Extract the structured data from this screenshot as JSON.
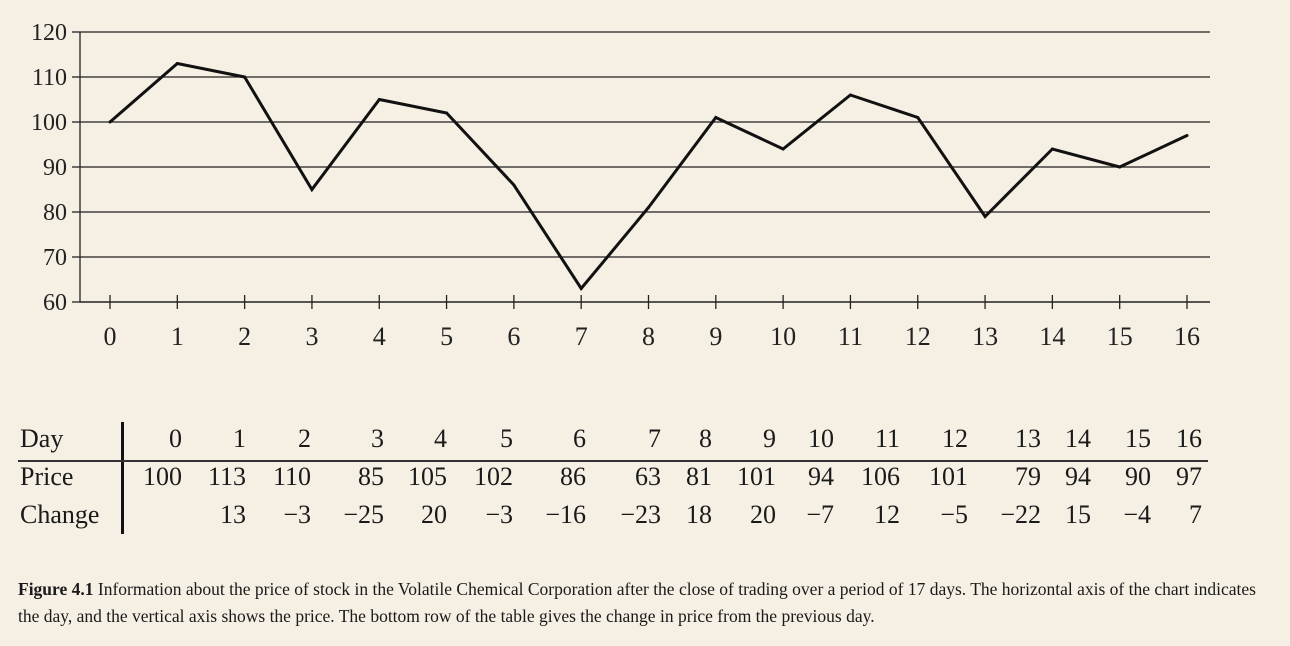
{
  "chart_data": {
    "type": "line",
    "x": [
      0,
      1,
      2,
      3,
      4,
      5,
      6,
      7,
      8,
      9,
      10,
      11,
      12,
      13,
      14,
      15,
      16
    ],
    "series": [
      {
        "values": [
          100,
          113,
          110,
          85,
          105,
          102,
          86,
          63,
          81,
          101,
          94,
          106,
          101,
          79,
          94,
          90,
          97
        ]
      }
    ],
    "yticks": [
      60,
      70,
      80,
      90,
      100,
      110,
      120
    ],
    "ylim": [
      60,
      120
    ],
    "xlim": [
      0,
      16
    ],
    "grid": "horizontal",
    "line_color": "#111111"
  },
  "table": {
    "labels": {
      "day": "Day",
      "price": "Price",
      "change": "Change"
    },
    "day": [
      "0",
      "1",
      "2",
      "3",
      "4",
      "5",
      "6",
      "7",
      "8",
      "9",
      "10",
      "11",
      "12",
      "13",
      "14",
      "15",
      "16"
    ],
    "price": [
      "100",
      "113",
      "110",
      "85",
      "105",
      "102",
      "86",
      "63",
      "81",
      "101",
      "94",
      "106",
      "101",
      "79",
      "94",
      "90",
      "97"
    ],
    "change": [
      "",
      "13",
      "−3",
      "−25",
      "20",
      "−3",
      "−16",
      "−23",
      "18",
      "20",
      "−7",
      "12",
      "−5",
      "−22",
      "15",
      "−4",
      "7"
    ]
  },
  "caption": {
    "label": "Figure 4.1",
    "text": " Information about the price of stock in the Volatile Chemical Corporation after the close of trading over a period of 17 days. The horizontal axis of the chart indicates the day, and the vertical axis shows the price. The bottom row of the table gives the change in price from the previous day."
  }
}
